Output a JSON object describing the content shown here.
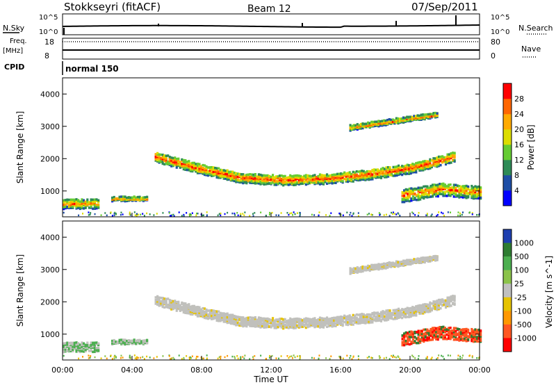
{
  "header": {
    "station": "Stokkseyri (fitACF)",
    "beam": "Beam 12",
    "date": "07/Sep/2011"
  },
  "strips": {
    "nsky_label": "N.Sky",
    "nsearch_label": "N.Search",
    "noise_ticks": [
      "10^5",
      "10^0"
    ],
    "freq_label_1": "Freq.",
    "freq_label_2": "[MHz]",
    "freq_ticks": [
      "18",
      "8"
    ],
    "nave_label": "Nave",
    "nave_ticks": [
      "80",
      "0"
    ],
    "cpid_label": "CPID",
    "cpid_value": "normal 150"
  },
  "colors": {
    "power_scale": [
      "#0000ff",
      "#1e4ea6",
      "#2e8b57",
      "#66cc33",
      "#dddd00",
      "#ffaa00",
      "#ff6600",
      "#ff0000"
    ],
    "velocity_scale": [
      "#1e3fb0",
      "#2e7d32",
      "#4caf50",
      "#8bc34a",
      "#c0c0c0",
      "#e6c300",
      "#ff9800",
      "#ff5722",
      "#ff0000"
    ],
    "background_ground_scatter": "#c0c0bc"
  },
  "chart_data": [
    {
      "type": "heatmap",
      "name": "power",
      "ylabel": "Slant Range [km]",
      "yticks": [
        "1000",
        "2000",
        "3000",
        "4000"
      ],
      "ylim": [
        200,
        4500
      ],
      "xlim": [
        0,
        24
      ],
      "colorbar_label": "Power [dB]",
      "colorbar_ticks": [
        "4",
        "8",
        "12",
        "16",
        "20",
        "24",
        "28"
      ],
      "bands": [
        {
          "t_start": 5.3,
          "t_end": 22.5,
          "range_center_km": [
            2100,
            1750,
            1450,
            1380,
            1420,
            1550,
            1750,
            2100
          ],
          "thickness_km": 300
        },
        {
          "t_start": 16.5,
          "t_end": 21.5,
          "range_center_km": [
            3000,
            3200,
            3400
          ],
          "thickness_km": 150
        },
        {
          "t_start": 0.0,
          "t_end": 2.0,
          "range_center_km": [
            650,
            650,
            650
          ],
          "thickness_km": 300
        },
        {
          "t_start": 2.8,
          "t_end": 4.8,
          "range_center_km": [
            800,
            800,
            800
          ],
          "thickness_km": 120
        },
        {
          "t_start": 19.5,
          "t_end": 24.0,
          "range_center_km": [
            900,
            1100,
            1000
          ],
          "thickness_km": 400
        }
      ]
    },
    {
      "type": "heatmap",
      "name": "velocity",
      "ylabel": "Slant Range [km]",
      "yticks": [
        "1000",
        "2000",
        "3000",
        "4000"
      ],
      "ylim": [
        200,
        4500
      ],
      "xlim": [
        0,
        24
      ],
      "xlabel": "Time UT",
      "xticks": [
        "00:00",
        "04:00",
        "08:00",
        "12:00",
        "16:00",
        "20:00",
        "00:00"
      ],
      "colorbar_label": "Velocity [m s^-1]",
      "colorbar_ticks": [
        "1000",
        "500",
        "100",
        "25",
        "-25",
        "-100",
        "-500",
        "-1000"
      ]
    }
  ]
}
